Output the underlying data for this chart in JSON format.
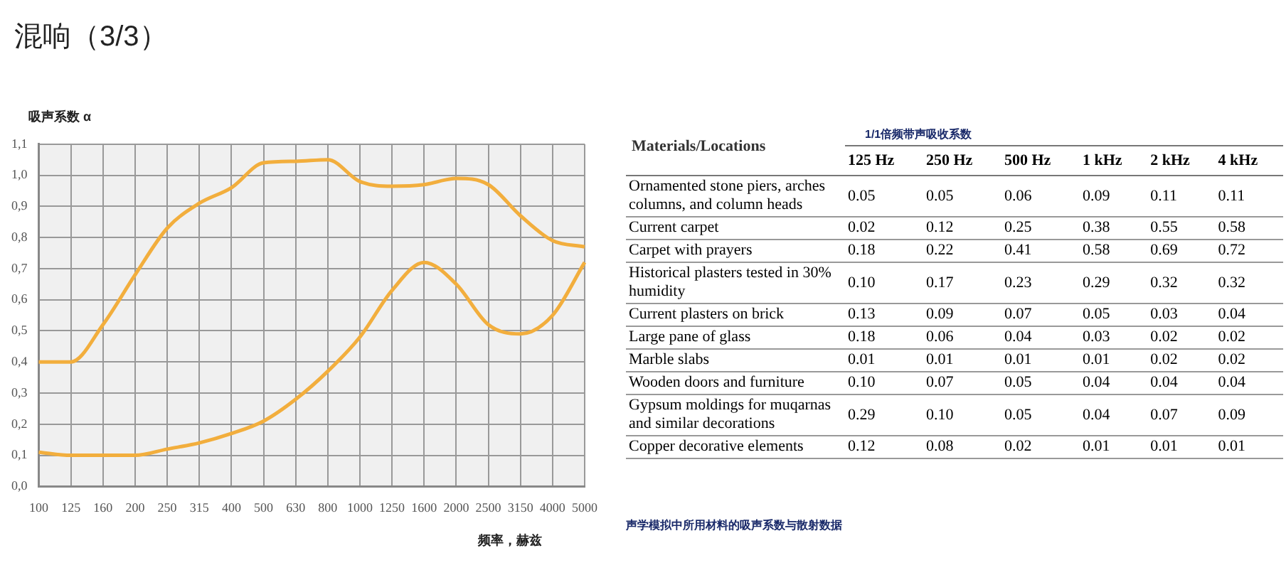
{
  "chart_data": [
    {
      "type": "line",
      "title": "混响（3/3）",
      "ylabel": "吸声系数 α",
      "xlabel": "频率，赫兹",
      "categories": [
        "100",
        "125",
        "160",
        "200",
        "250",
        "315",
        "400",
        "500",
        "630",
        "800",
        "1000",
        "1250",
        "1600",
        "2000",
        "2500",
        "3150",
        "4000",
        "5000"
      ],
      "series": [
        {
          "color": "#f2ae3d",
          "values": [
            0.4,
            0.4,
            0.52,
            0.68,
            0.83,
            0.91,
            0.96,
            1.04,
            1.045,
            1.05,
            0.98,
            0.965,
            0.97,
            0.99,
            0.97,
            0.87,
            0.79,
            0.77
          ]
        },
        {
          "color": "#f2ae3d",
          "values": [
            0.11,
            0.1,
            0.1,
            0.1,
            0.12,
            0.14,
            0.17,
            0.21,
            0.28,
            0.37,
            0.48,
            0.63,
            0.72,
            0.65,
            0.52,
            0.49,
            0.55,
            0.72
          ]
        }
      ],
      "ylim": [
        0,
        1.1
      ],
      "yticks": [
        {
          "value": 0,
          "label": "0,0"
        },
        {
          "value": 0.1,
          "label": "0,1"
        },
        {
          "value": 0.2,
          "label": "0,2"
        },
        {
          "value": 0.3,
          "label": "0,3"
        },
        {
          "value": 0.4,
          "label": "0,4"
        },
        {
          "value": 0.5,
          "label": "0,5"
        },
        {
          "value": 0.6,
          "label": "0,6"
        },
        {
          "value": 0.7,
          "label": "0,7"
        },
        {
          "value": 0.8,
          "label": "0,8"
        },
        {
          "value": 0.9,
          "label": "0,9"
        },
        {
          "value": 1.0,
          "label": "1,0"
        },
        {
          "value": 1.1,
          "label": "1,1"
        }
      ],
      "grid": true,
      "marker": "none",
      "line_style": "solid"
    },
    {
      "type": "heatmap",
      "title": "1/1倍频带声吸收系数",
      "ylabel": "Materials/Locations",
      "categories": [
        "125 Hz",
        "250 Hz",
        "500 Hz",
        "1 kHz",
        "2 kHz",
        "4 kHz"
      ],
      "y_categories": [
        "Ornamented stone piers, arches columns, and column heads",
        "Current carpet",
        "Carpet with prayers",
        "Historical plasters tested in 30% humidity",
        "Current plasters on brick",
        "Large pane of glass",
        "Marble slabs",
        "Wooden doors and furniture",
        "Gypsum moldings for muqarnas and similar decorations",
        "Copper decorative elements"
      ],
      "cells": [
        [
          0.05,
          0.05,
          0.06,
          0.09,
          0.11,
          0.11
        ],
        [
          0.02,
          0.12,
          0.25,
          0.38,
          0.55,
          0.58
        ],
        [
          0.18,
          0.22,
          0.41,
          0.58,
          0.69,
          0.72
        ],
        [
          0.1,
          0.17,
          0.23,
          0.29,
          0.32,
          0.32
        ],
        [
          0.13,
          0.09,
          0.07,
          0.05,
          0.03,
          0.04
        ],
        [
          0.18,
          0.06,
          0.04,
          0.03,
          0.02,
          0.02
        ],
        [
          0.01,
          0.01,
          0.01,
          0.01,
          0.02,
          0.02
        ],
        [
          0.1,
          0.07,
          0.05,
          0.04,
          0.04,
          0.04
        ],
        [
          0.29,
          0.1,
          0.05,
          0.04,
          0.07,
          0.09
        ],
        [
          0.12,
          0.08,
          0.02,
          0.01,
          0.01,
          0.01
        ]
      ],
      "cell_labels": [
        [
          "0.05",
          "0.05",
          "0.06",
          "0.09",
          "0.11",
          "0.11"
        ],
        [
          "0.02",
          "0.12",
          "0.25",
          "0.38",
          "0.55",
          "0.58"
        ],
        [
          "0.18",
          "0.22",
          "0.41",
          "0.58",
          "0.69",
          "0.72"
        ],
        [
          "0.10",
          "0.17",
          "0.23",
          "0.29",
          "0.32",
          "0.32"
        ],
        [
          "0.13",
          "0.09",
          "0.07",
          "0.05",
          "0.03",
          "0.04"
        ],
        [
          "0.18",
          "0.06",
          "0.04",
          "0.03",
          "0.02",
          "0.02"
        ],
        [
          "0.01",
          "0.01",
          "0.01",
          "0.01",
          "0.02",
          "0.02"
        ],
        [
          "0.10",
          "0.07",
          "0.05",
          "0.04",
          "0.04",
          "0.04"
        ],
        [
          "0.29",
          "0.10",
          "0.05",
          "0.04",
          "0.07",
          "0.09"
        ],
        [
          "0.12",
          "0.08",
          "0.02",
          "0.01",
          "0.01",
          "0.01"
        ]
      ],
      "grid": "y",
      "annotations": [
        "声学模拟中所用材料的吸声系数与散射数据"
      ]
    }
  ]
}
